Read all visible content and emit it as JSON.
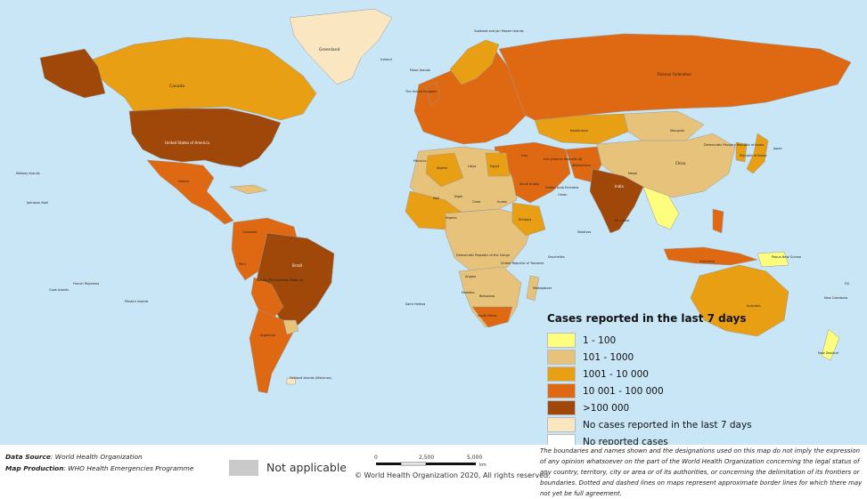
{
  "colors": {
    "ocean": "#c9e6f7",
    "c1_100": "#fefe7e",
    "c101_1000": "#e7c27b",
    "c1001_10000": "#e99f13",
    "c10001_100000": "#df6812",
    "c_over_100000": "#a0480a",
    "no_cases_7d": "#fbe6c2",
    "no_reported": "#ffffff",
    "not_applicable": "#c9c9c9"
  },
  "legend": {
    "title": "Cases reported in the last 7 days",
    "items": [
      {
        "label": "1 - 100",
        "color": "#fefe7e"
      },
      {
        "label": "101 - 1000",
        "color": "#e7c27b"
      },
      {
        "label": "1001 - 10 000",
        "color": "#e99f13"
      },
      {
        "label": "10 001 - 100 000",
        "color": "#df6812"
      },
      {
        "label": ">100 000",
        "color": "#a0480a"
      },
      {
        "label": "No cases reported in the last 7 days",
        "color": "#fbe6c2"
      },
      {
        "label": "No reported cases",
        "color": "#ffffff"
      }
    ]
  },
  "map_labels": {
    "greenland": "Greenland",
    "svalbard": "Svalbard and Jan Mayen Islands",
    "iceland": "Iceland",
    "faroe": "Faroe Islands",
    "canada": "Canada",
    "usa": "United States of America",
    "russia": "Russian Federation",
    "mongolia": "Mongolia",
    "china": "China",
    "dprk": "Democratic People's Republic of Korea",
    "korea": "Republic of Korea",
    "japan": "Japan",
    "india": "India",
    "nepal": "Nepal",
    "afghanistan": "Afghanistan",
    "iran": "Iran (Islamic Republic of)",
    "iraq": "Iraq",
    "saudi": "Saudi Arabia",
    "uae": "United Arab Emirates",
    "oman": "Oman",
    "egypt": "Egypt",
    "libya": "Libya",
    "algeria": "Algeria",
    "morocco": "Morocco",
    "mali": "Mali",
    "niger": "Niger",
    "chad": "Chad",
    "sudan": "Sudan",
    "ethiopia": "Ethiopia",
    "nigeria": "Nigeria",
    "drc": "Democratic Republic of the Congo",
    "angola": "Angola",
    "namibia": "Namibia",
    "botswana": "Botswana",
    "south_africa": "South Africa",
    "tanzania": "United Republic of Tanzania",
    "madagascar": "Madagascar",
    "brazil": "Brazil",
    "argentina": "Argentina",
    "peru": "Peru",
    "bolivia": "Bolivia (Plurinational State of)",
    "colombia": "Colombia",
    "mexico": "Mexico",
    "australia": "Australia",
    "png": "Papua New Guinea",
    "nz": "New Zealand",
    "indonesia": "Indonesia",
    "falkland": "Falkland Islands (Malvinas)",
    "st_helena": "Saint Helena",
    "pitcairn": "Pitcairn Islands",
    "fr_polynesia": "French Polynesia",
    "cook": "Cook Islands",
    "midway": "Midway Islands",
    "johnston": "Johnston Atoll",
    "uk": "The United Kingdom",
    "kazakhstan": "Kazakhstan",
    "seychelles": "Seychelles",
    "maldives": "Maldives",
    "sri_lanka": "Sri Lanka",
    "new_caledonia": "New Caledonia",
    "fiji": "Fiji"
  },
  "footer": {
    "data_source_label": "Data Source",
    "data_source_value": ": World Health Organization",
    "map_production_label": "Map Production",
    "map_production_value": ": WHO Health Emergencies Programme",
    "not_applicable": "Not applicable",
    "scale_0": "0",
    "scale_2500": "2,500",
    "scale_5000": "5,000",
    "scale_unit": "km",
    "copyright": "© World Health Organization  2020,  All rights reserved.",
    "disclaimer": "The boundaries and names shown and the designations used on this map do not imply the expression of any opinion whatsoever on the part of the World Health Organization concerning the legal status of any country, territory, city or area or of its authorities, or concerning the delimitation of its frontiers or boundaries. Dotted and dashed lines on maps represent approximate border lines for which there may not yet be full agreement."
  }
}
